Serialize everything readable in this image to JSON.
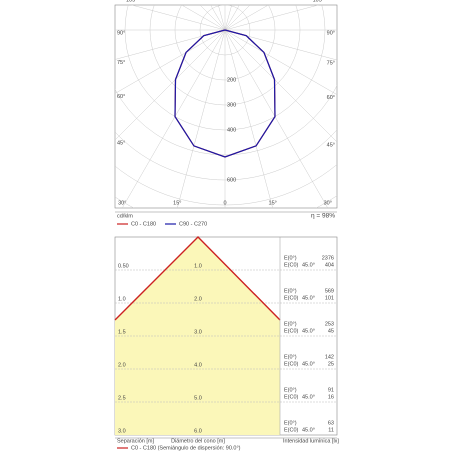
{
  "chart_data": {
    "type": "polar",
    "unit": "cd/klm",
    "efficiency": "η = 98%",
    "angle_ticks": [
      {
        "value": -105,
        "label": "105°"
      },
      {
        "value": -90,
        "label": "90°"
      },
      {
        "value": -75,
        "label": "75°"
      },
      {
        "value": -60,
        "label": "60°"
      },
      {
        "value": -45,
        "label": "45°"
      },
      {
        "value": -30,
        "label": "30°"
      },
      {
        "value": -15,
        "label": "15°"
      },
      0,
      {
        "value": 15,
        "label": "15°"
      },
      {
        "value": 30,
        "label": "30°"
      },
      {
        "value": 45,
        "label": "45°"
      },
      {
        "value": 60,
        "label": "60°"
      },
      {
        "value": 75,
        "label": "75°"
      },
      {
        "value": 90,
        "label": "90°"
      },
      {
        "value": 105,
        "label": "105°"
      }
    ],
    "rlim": [
      0,
      800
    ],
    "rticks": [
      200,
      300,
      400,
      600
    ],
    "x": [
      -90,
      -75,
      -60,
      -45,
      -30,
      -15,
      0,
      15,
      30,
      45,
      60,
      75,
      90
    ],
    "series": [
      {
        "name": "C0 - C180",
        "color": "#cc2222",
        "values": [
          0,
          88,
          180,
          280,
          400,
          480,
          508,
          480,
          400,
          280,
          180,
          88,
          0
        ]
      },
      {
        "name": "C90 - C270",
        "color": "#1a1aa8",
        "values": [
          0,
          88,
          180,
          280,
          400,
          480,
          508,
          480,
          400,
          280,
          180,
          88,
          0
        ]
      }
    ]
  },
  "cone": {
    "rows": [
      {
        "separation": "0.50",
        "diameter": "1.0",
        "e0_label": "E(0°)",
        "e0": 2376,
        "ec_label": "E(C0)",
        "angle": "45.0°",
        "ec": 404
      },
      {
        "separation": "1.0",
        "diameter": "2.0",
        "e0_label": "E(0°)",
        "e0": 569,
        "ec_label": "E(C0)",
        "angle": "45.0°",
        "ec": 101
      },
      {
        "separation": "1.5",
        "diameter": "3.0",
        "e0_label": "E(0°)",
        "e0": 253,
        "ec_label": "E(C0)",
        "angle": "45.0°",
        "ec": 45
      },
      {
        "separation": "2.0",
        "diameter": "4.0",
        "e0_label": "E(0°)",
        "e0": 142,
        "ec_label": "E(C0)",
        "angle": "45.0°",
        "ec": 25
      },
      {
        "separation": "2.5",
        "diameter": "5.0",
        "e0_label": "E(0°)",
        "e0": 91,
        "ec_label": "E(C0)",
        "angle": "45.0°",
        "ec": 16
      },
      {
        "separation": "3.0",
        "diameter": "6.0",
        "e0_label": "E(0°)",
        "e0": 63,
        "ec_label": "E(C0)",
        "angle": "45.0°",
        "ec": 11
      }
    ],
    "footer": [
      "Separación [m]",
      "Diámetro del cono [m]",
      "Intensidad lumínica [lx]"
    ],
    "legend": "C0 - C180 (Semiángulo de dispersión: 90.0°)"
  }
}
